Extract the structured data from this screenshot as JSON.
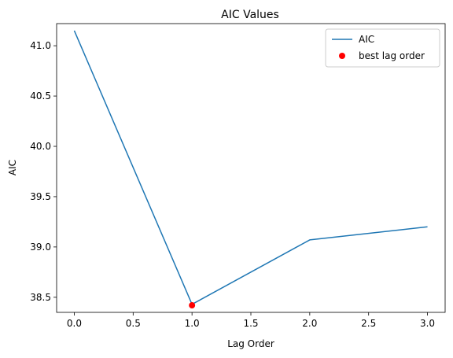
{
  "chart_data": {
    "type": "line",
    "title": "AIC Values",
    "xlabel": "Lag Order",
    "ylabel": "AIC",
    "xlim": [
      -0.15,
      3.15
    ],
    "ylim": [
      38.35,
      41.22
    ],
    "xticks": [
      0.0,
      0.5,
      1.0,
      1.5,
      2.0,
      2.5,
      3.0
    ],
    "xtick_labels": [
      "0.0",
      "0.5",
      "1.0",
      "1.5",
      "2.0",
      "2.5",
      "3.0"
    ],
    "yticks": [
      38.5,
      39.0,
      39.5,
      40.0,
      40.5,
      41.0
    ],
    "ytick_labels": [
      "38.5",
      "39.0",
      "39.5",
      "40.0",
      "40.5",
      "41.0"
    ],
    "grid": false,
    "legend_position": "top-right",
    "series": [
      {
        "name": "AIC",
        "kind": "line",
        "color": "#1f77b4",
        "x": [
          0,
          1,
          2,
          3
        ],
        "y": [
          41.15,
          38.43,
          39.07,
          39.2
        ]
      },
      {
        "name": "best lag order",
        "kind": "scatter",
        "color": "#ff0000",
        "x": [
          1
        ],
        "y": [
          38.42
        ]
      }
    ]
  }
}
